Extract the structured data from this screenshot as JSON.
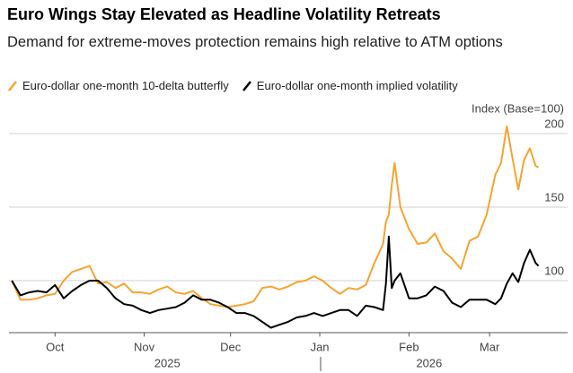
{
  "chart_data": {
    "type": "line",
    "title": "Euro Wings Stay Elevated as Headline Volatility Retreats",
    "subtitle": "Demand for extreme-moves protection remains high relative to ATM options",
    "y_label": "Index (Base=100)",
    "x": [
      0,
      3,
      6,
      9,
      12,
      15,
      18,
      21,
      24,
      27,
      30,
      33,
      36,
      39,
      42,
      45,
      48,
      51,
      54,
      57,
      60,
      63,
      66,
      69,
      72,
      75,
      78,
      81,
      84,
      87,
      90,
      93,
      96,
      99,
      102,
      105,
      108,
      111,
      114,
      117,
      120,
      123,
      126,
      129,
      130,
      131,
      132,
      133,
      135,
      138,
      141,
      144,
      147,
      150,
      153,
      156,
      159,
      162,
      165,
      168,
      170,
      172,
      174,
      176,
      178,
      180,
      182,
      183
    ],
    "series": [
      {
        "name": "Euro-dollar one-month 10-delta butterfly",
        "color": "#f5a431",
        "values": [
          100,
          87,
          87,
          88,
          90,
          91,
          100,
          106,
          108,
          110,
          98,
          99,
          95,
          98,
          92,
          92,
          91,
          94,
          96,
          92,
          91,
          93,
          88,
          84,
          83,
          82,
          83,
          84,
          86,
          95,
          96,
          94,
          96,
          99,
          100,
          103,
          100,
          95,
          91,
          95,
          94,
          97,
          112,
          125,
          140,
          145,
          165,
          180,
          150,
          135,
          125,
          126,
          132,
          120,
          115,
          108,
          127,
          130,
          145,
          172,
          180,
          205,
          183,
          162,
          182,
          190,
          178,
          177
        ]
      },
      {
        "name": "Euro-dollar one-month implied volatility",
        "color": "#000000",
        "values": [
          100,
          90,
          92,
          93,
          92,
          97,
          88,
          93,
          97,
          100,
          100,
          95,
          88,
          84,
          83,
          80,
          78,
          80,
          81,
          82,
          85,
          90,
          87,
          87,
          85,
          82,
          78,
          78,
          76,
          72,
          68,
          70,
          72,
          75,
          76,
          78,
          76,
          78,
          80,
          80,
          76,
          83,
          82,
          80,
          98,
          130,
          95,
          100,
          105,
          88,
          88,
          90,
          96,
          93,
          85,
          82,
          87,
          87,
          87,
          84,
          88,
          98,
          105,
          99,
          112,
          121,
          112,
          110
        ]
      }
    ],
    "xlim": [
      -1,
      192
    ],
    "xticks": [
      {
        "value": 15,
        "label": "Oct"
      },
      {
        "value": 46,
        "label": "Nov"
      },
      {
        "value": 76,
        "label": "Dec"
      },
      {
        "value": 107,
        "label": "Jan"
      },
      {
        "value": 138,
        "label": "Feb"
      },
      {
        "value": 166,
        "label": "Mar"
      }
    ],
    "year_labels": [
      {
        "value": 54,
        "label": "2025"
      },
      {
        "value": 145,
        "label": "2026"
      }
    ],
    "ylim": [
      65,
      218
    ],
    "yticks": [
      100,
      150,
      200
    ],
    "grid": true
  }
}
